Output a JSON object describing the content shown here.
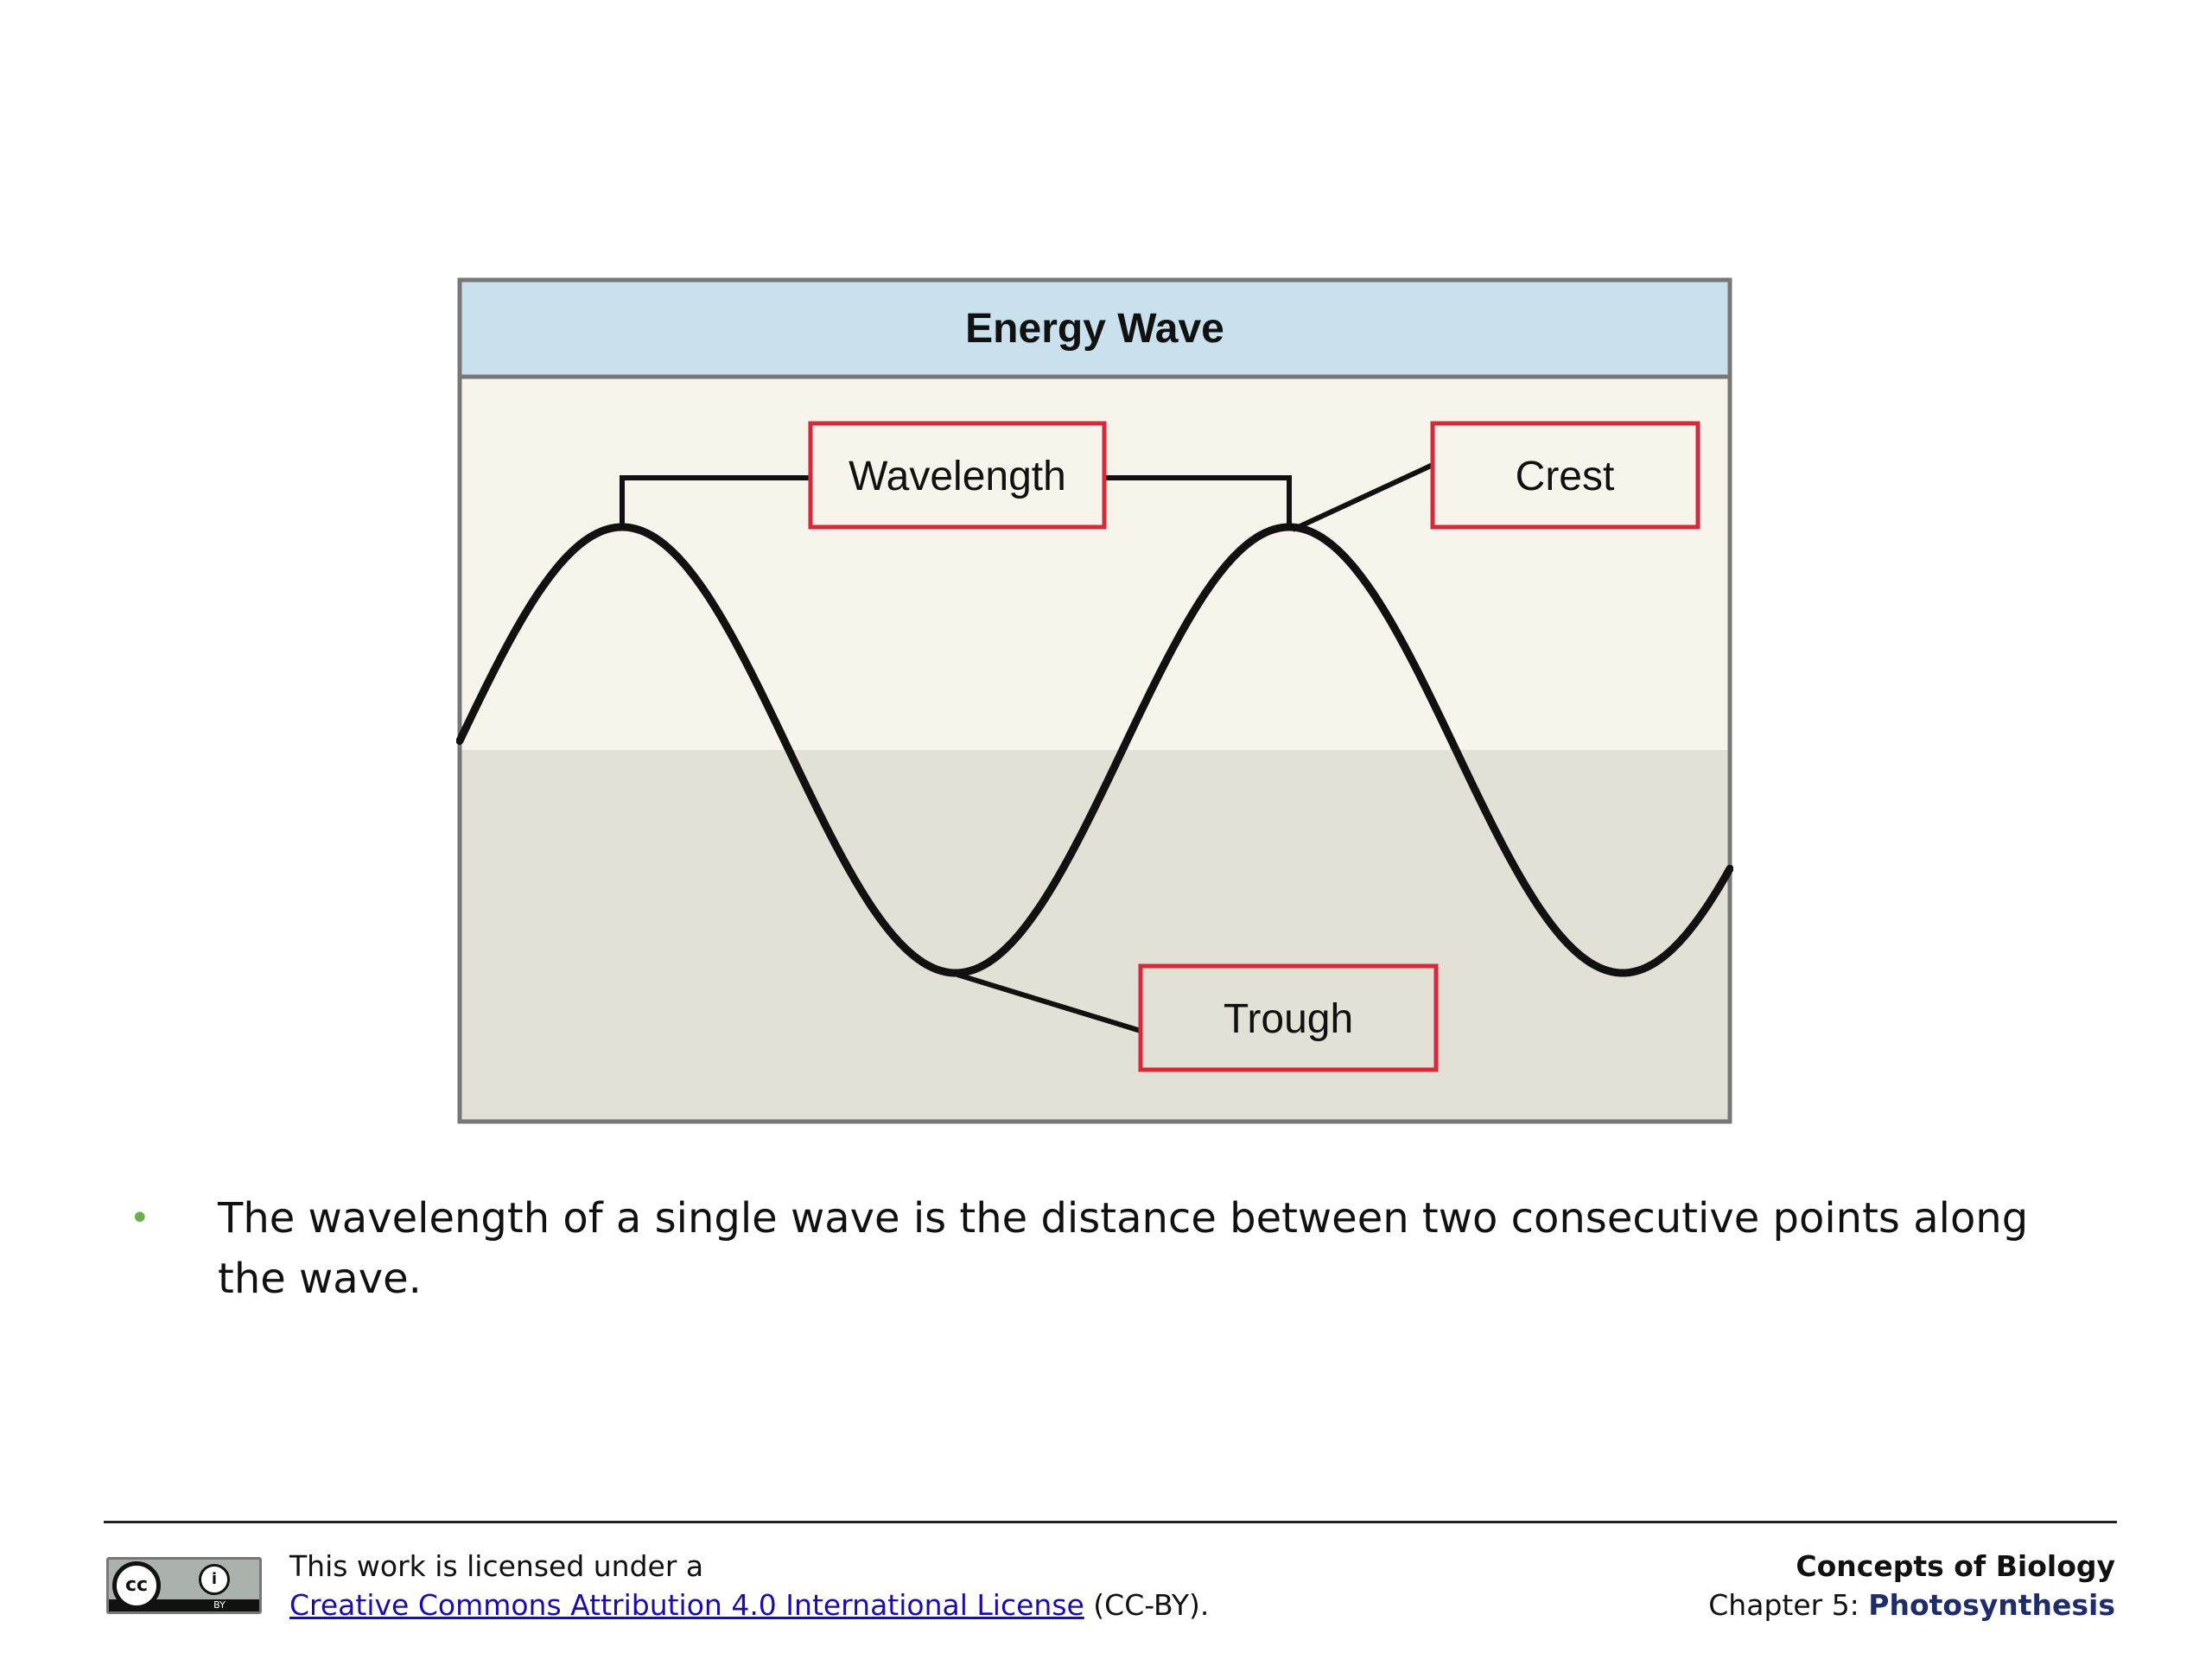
{
  "diagram": {
    "title": "Energy Wave",
    "labels": {
      "wavelength": "Wavelength",
      "crest": "Crest",
      "trough": "Trough"
    },
    "colors": {
      "header_fill": "#c8e1ed",
      "upper_fill": "#f7f4ec",
      "lower_fill": "#e3e0d6",
      "frame": "#777777",
      "label_border": "#d6293b",
      "wave_stroke": "#111111"
    }
  },
  "bullet": {
    "text": "The wavelength of a single wave is the distance between two consecutive points along the wave."
  },
  "footer": {
    "badge": {
      "cc": "cc",
      "by_icon": "by-person-icon",
      "by_text": "BY"
    },
    "license_line1": "This work is licensed under a",
    "license_link": "Creative Commons Attribution 4.0 International License",
    "license_suffix": " (CC-BY).",
    "book": "Concepts of Biology",
    "chapter_prefix": "Chapter 5: ",
    "chapter_title": "Photosynthesis"
  }
}
